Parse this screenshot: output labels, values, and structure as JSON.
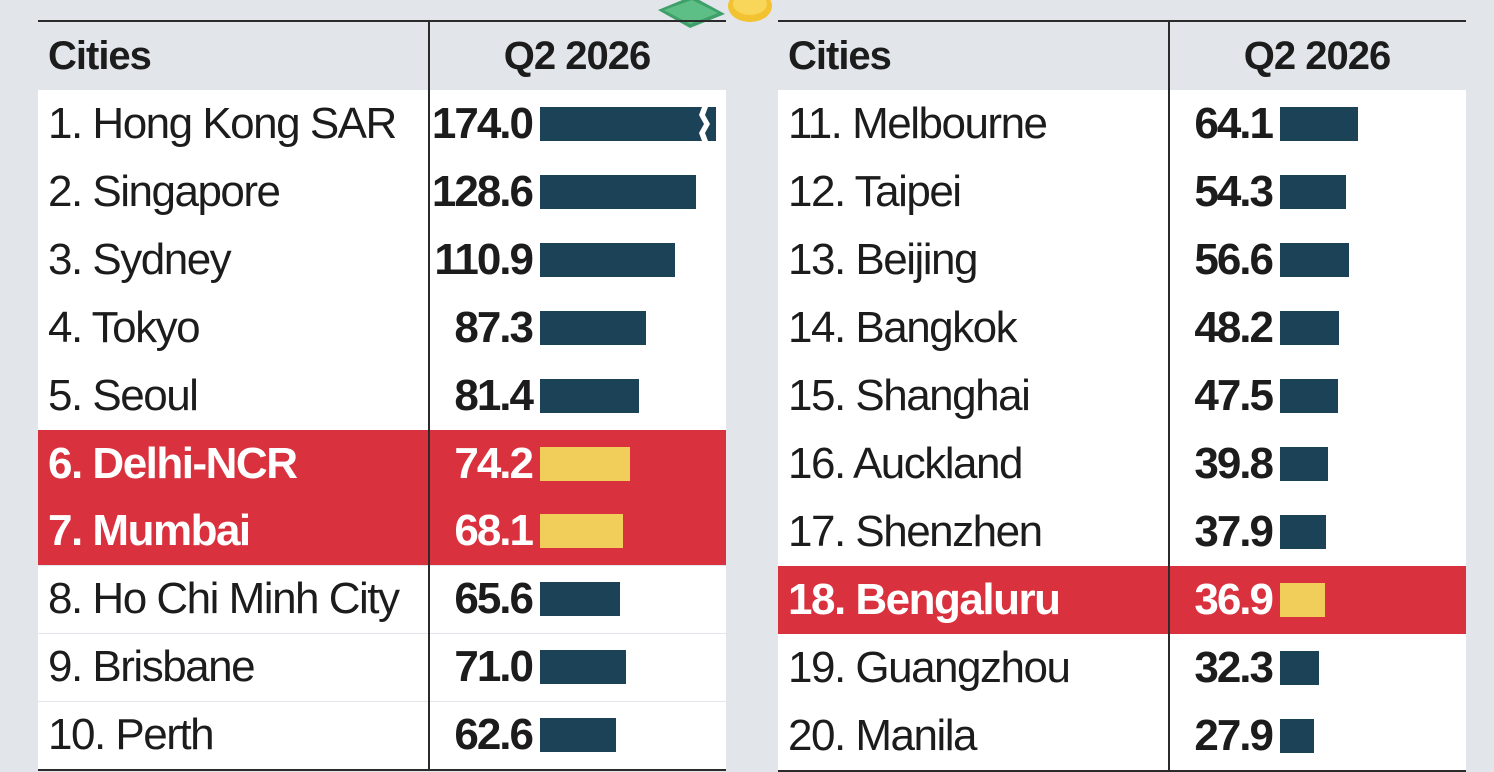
{
  "chart_data": {
    "type": "table",
    "header": {
      "city_label": "Cities",
      "value_label": "Q2 2026"
    },
    "colors": {
      "bar": "#1b4256",
      "highlight_bar": "#f1cd5a",
      "highlight_row": "#d9313d"
    },
    "bar_scale_max": 128.6,
    "panels": [
      {
        "rows": [
          {
            "city": "1. Hong Kong SAR",
            "value": 174.0,
            "value_text": "174.0",
            "highlight": false,
            "broken_axis": true
          },
          {
            "city": "2. Singapore",
            "value": 128.6,
            "value_text": "128.6",
            "highlight": false
          },
          {
            "city": "3. Sydney",
            "value": 110.9,
            "value_text": "110.9",
            "highlight": false
          },
          {
            "city": "4. Tokyo",
            "value": 87.3,
            "value_text": "87.3",
            "highlight": false
          },
          {
            "city": "5. Seoul",
            "value": 81.4,
            "value_text": "81.4",
            "highlight": false
          },
          {
            "city": "6. Delhi-NCR",
            "value": 74.2,
            "value_text": "74.2",
            "highlight": true
          },
          {
            "city": "7. Mumbai",
            "value": 68.1,
            "value_text": "68.1",
            "highlight": true
          },
          {
            "city": "8. Ho Chi Minh City",
            "value": 65.6,
            "value_text": "65.6",
            "highlight": false
          },
          {
            "city": "9. Brisbane",
            "value": 71.0,
            "value_text": "71.0",
            "highlight": false
          },
          {
            "city": "10. Perth",
            "value": 62.6,
            "value_text": "62.6",
            "highlight": false
          }
        ]
      },
      {
        "rows": [
          {
            "city": "11. Melbourne",
            "value": 64.1,
            "value_text": "64.1",
            "highlight": false
          },
          {
            "city": "12. Taipei",
            "value": 54.3,
            "value_text": "54.3",
            "highlight": false
          },
          {
            "city": "13. Beijing",
            "value": 56.6,
            "value_text": "56.6",
            "highlight": false
          },
          {
            "city": "14. Bangkok",
            "value": 48.2,
            "value_text": "48.2",
            "highlight": false
          },
          {
            "city": "15. Shanghai",
            "value": 47.5,
            "value_text": "47.5",
            "highlight": false
          },
          {
            "city": "16. Auckland",
            "value": 39.8,
            "value_text": "39.8",
            "highlight": false
          },
          {
            "city": "17. Shenzhen",
            "value": 37.9,
            "value_text": "37.9",
            "highlight": false
          },
          {
            "city": "18. Bengaluru",
            "value": 36.9,
            "value_text": "36.9",
            "highlight": true
          },
          {
            "city": "19. Guangzhou",
            "value": 32.3,
            "value_text": "32.3",
            "highlight": false
          },
          {
            "city": "20. Manila",
            "value": 27.9,
            "value_text": "27.9",
            "highlight": false
          }
        ]
      }
    ]
  }
}
